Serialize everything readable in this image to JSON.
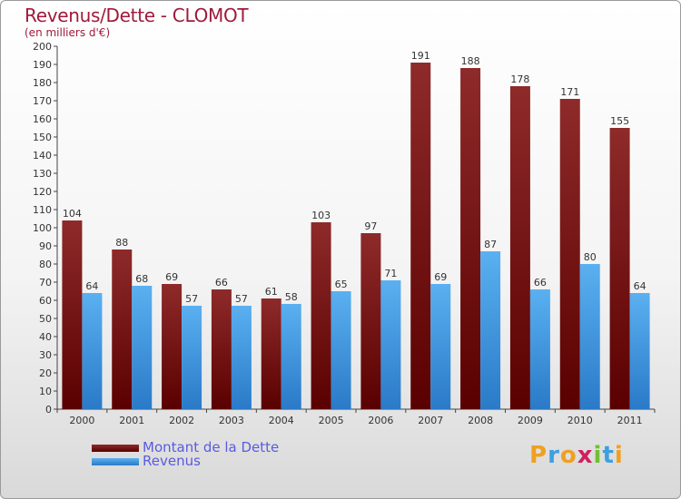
{
  "header": {
    "title": "Revenus/Dette - CLOMOT",
    "subtitle": "(en milliers d'€)"
  },
  "legend": {
    "debt_label": "Montant de la Dette",
    "revenue_label": "Revenus"
  },
  "logo": {
    "letters": [
      "P",
      "r",
      "o",
      "x",
      "i",
      "t",
      "i"
    ],
    "colors": [
      "#f0a020",
      "#3ca0e0",
      "#f0a020",
      "#d02060",
      "#70c030",
      "#3ca0e0",
      "#f0a020"
    ]
  },
  "colors": {
    "debt": "#7a1a1a",
    "revenue": "#4a9ee0",
    "title": "#a01a3c"
  },
  "chart_data": {
    "type": "bar",
    "title": "Revenus/Dette - CLOMOT",
    "subtitle": "(en milliers d'€)",
    "categories": [
      "2000",
      "2001",
      "2002",
      "2003",
      "2004",
      "2005",
      "2006",
      "2007",
      "2008",
      "2009",
      "2010",
      "2011"
    ],
    "series": [
      {
        "name": "Montant de la Dette",
        "values": [
          104,
          88,
          69,
          66,
          61,
          103,
          97,
          191,
          188,
          178,
          171,
          155
        ]
      },
      {
        "name": "Revenus",
        "values": [
          64,
          68,
          57,
          57,
          58,
          65,
          71,
          69,
          87,
          66,
          80,
          64
        ]
      }
    ],
    "ylim": [
      0,
      200
    ],
    "ytick_step": 10,
    "grid": false,
    "legend": "bottom-left"
  }
}
